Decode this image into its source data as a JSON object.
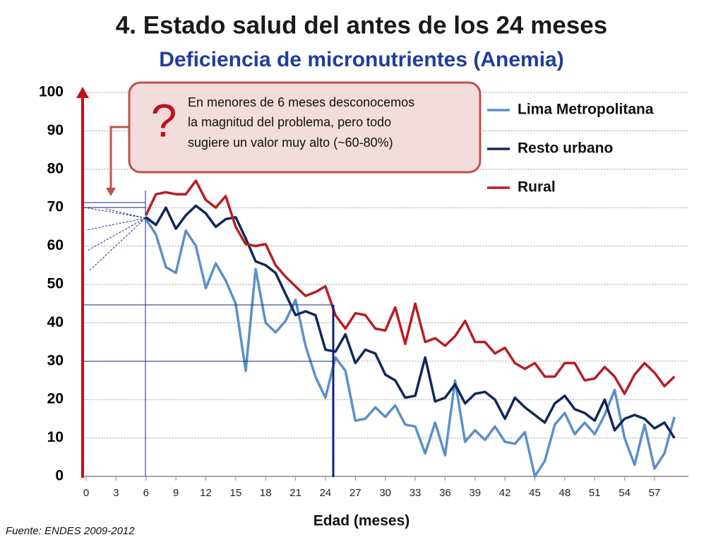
{
  "chart_data": {
    "type": "line",
    "title": "4. Estado salud del antes de los 24 meses",
    "subtitle": "Deficiencia de micronutrientes (Anemia)",
    "x_label": "Edad (meses)",
    "source": "Fuente: ENDES 2009-2012",
    "annotation": {
      "mark": "?",
      "lines": [
        "En menores de 6 meses desconocemos",
        "la magnitud del problema, pero todo",
        "sugiere un valor muy alto (~60-80%)"
      ]
    },
    "x": [
      6,
      7,
      8,
      9,
      10,
      11,
      12,
      13,
      14,
      15,
      16,
      17,
      18,
      19,
      20,
      21,
      22,
      23,
      24,
      25,
      26,
      27,
      28,
      29,
      30,
      31,
      32,
      33,
      34,
      35,
      36,
      37,
      38,
      39,
      40,
      41,
      42,
      43,
      44,
      45,
      46,
      47,
      48,
      49,
      50,
      51,
      52,
      53,
      54,
      55,
      56,
      57,
      58,
      59
    ],
    "series": [
      {
        "name": "Lima Metropolitana",
        "color": "#5b8fc9",
        "values": [
          67,
          63,
          54.5,
          53,
          64,
          60,
          49,
          55.5,
          51,
          45,
          27.5,
          54,
          40,
          37.5,
          40.5,
          46,
          34,
          26,
          20.5,
          31,
          27.5,
          14.5,
          15,
          18,
          15.5,
          18.5,
          13.5,
          13,
          6,
          14,
          5.5,
          25,
          9,
          12,
          9.5,
          13,
          9,
          8.5,
          11.5,
          0,
          4,
          13.5,
          16.5,
          11,
          14,
          11,
          16,
          22.5,
          10,
          3,
          13.5,
          2,
          6,
          15.5
        ]
      },
      {
        "name": "Resto urbano",
        "color": "#10275a",
        "values": [
          67.5,
          65.5,
          70,
          64.5,
          68,
          70.5,
          68.5,
          65,
          67,
          67.5,
          62,
          56,
          55,
          53,
          47.5,
          42,
          43,
          42,
          33,
          32.5,
          37,
          29.5,
          33,
          32,
          26.5,
          25,
          20.5,
          21,
          31,
          19.5,
          20.5,
          24,
          19,
          21.5,
          22,
          20,
          15,
          20.5,
          18,
          16,
          14,
          19,
          21,
          17.5,
          16.5,
          14.5,
          20,
          12,
          15,
          16,
          15,
          12.5,
          14,
          10
        ]
      },
      {
        "name": "Rural",
        "color": "#b81d23",
        "values": [
          68,
          73.5,
          74,
          73.5,
          73.5,
          77,
          72,
          70,
          73,
          65,
          60.5,
          60,
          60.5,
          55,
          52,
          49.5,
          47,
          48,
          49.5,
          42,
          38.5,
          42.5,
          42,
          38.5,
          38,
          44,
          34.5,
          45,
          35,
          36,
          34,
          36.5,
          40.5,
          35,
          35,
          32,
          33.5,
          29.5,
          28,
          29.5,
          26,
          26,
          29.5,
          29.5,
          25,
          25.5,
          28.5,
          26,
          21.5,
          26.5,
          29.5,
          27,
          23.5,
          26
        ]
      }
    ],
    "xlim": [
      -0.4,
      60.4
    ],
    "xticks": [
      0,
      3,
      6,
      9,
      12,
      15,
      18,
      21,
      24,
      27,
      30,
      33,
      36,
      39,
      42,
      45,
      48,
      51,
      54,
      57
    ],
    "ylim": [
      0,
      100
    ],
    "yticks": [
      0,
      10,
      20,
      30,
      40,
      50,
      60,
      70,
      80,
      90,
      100
    ],
    "grid": true
  }
}
